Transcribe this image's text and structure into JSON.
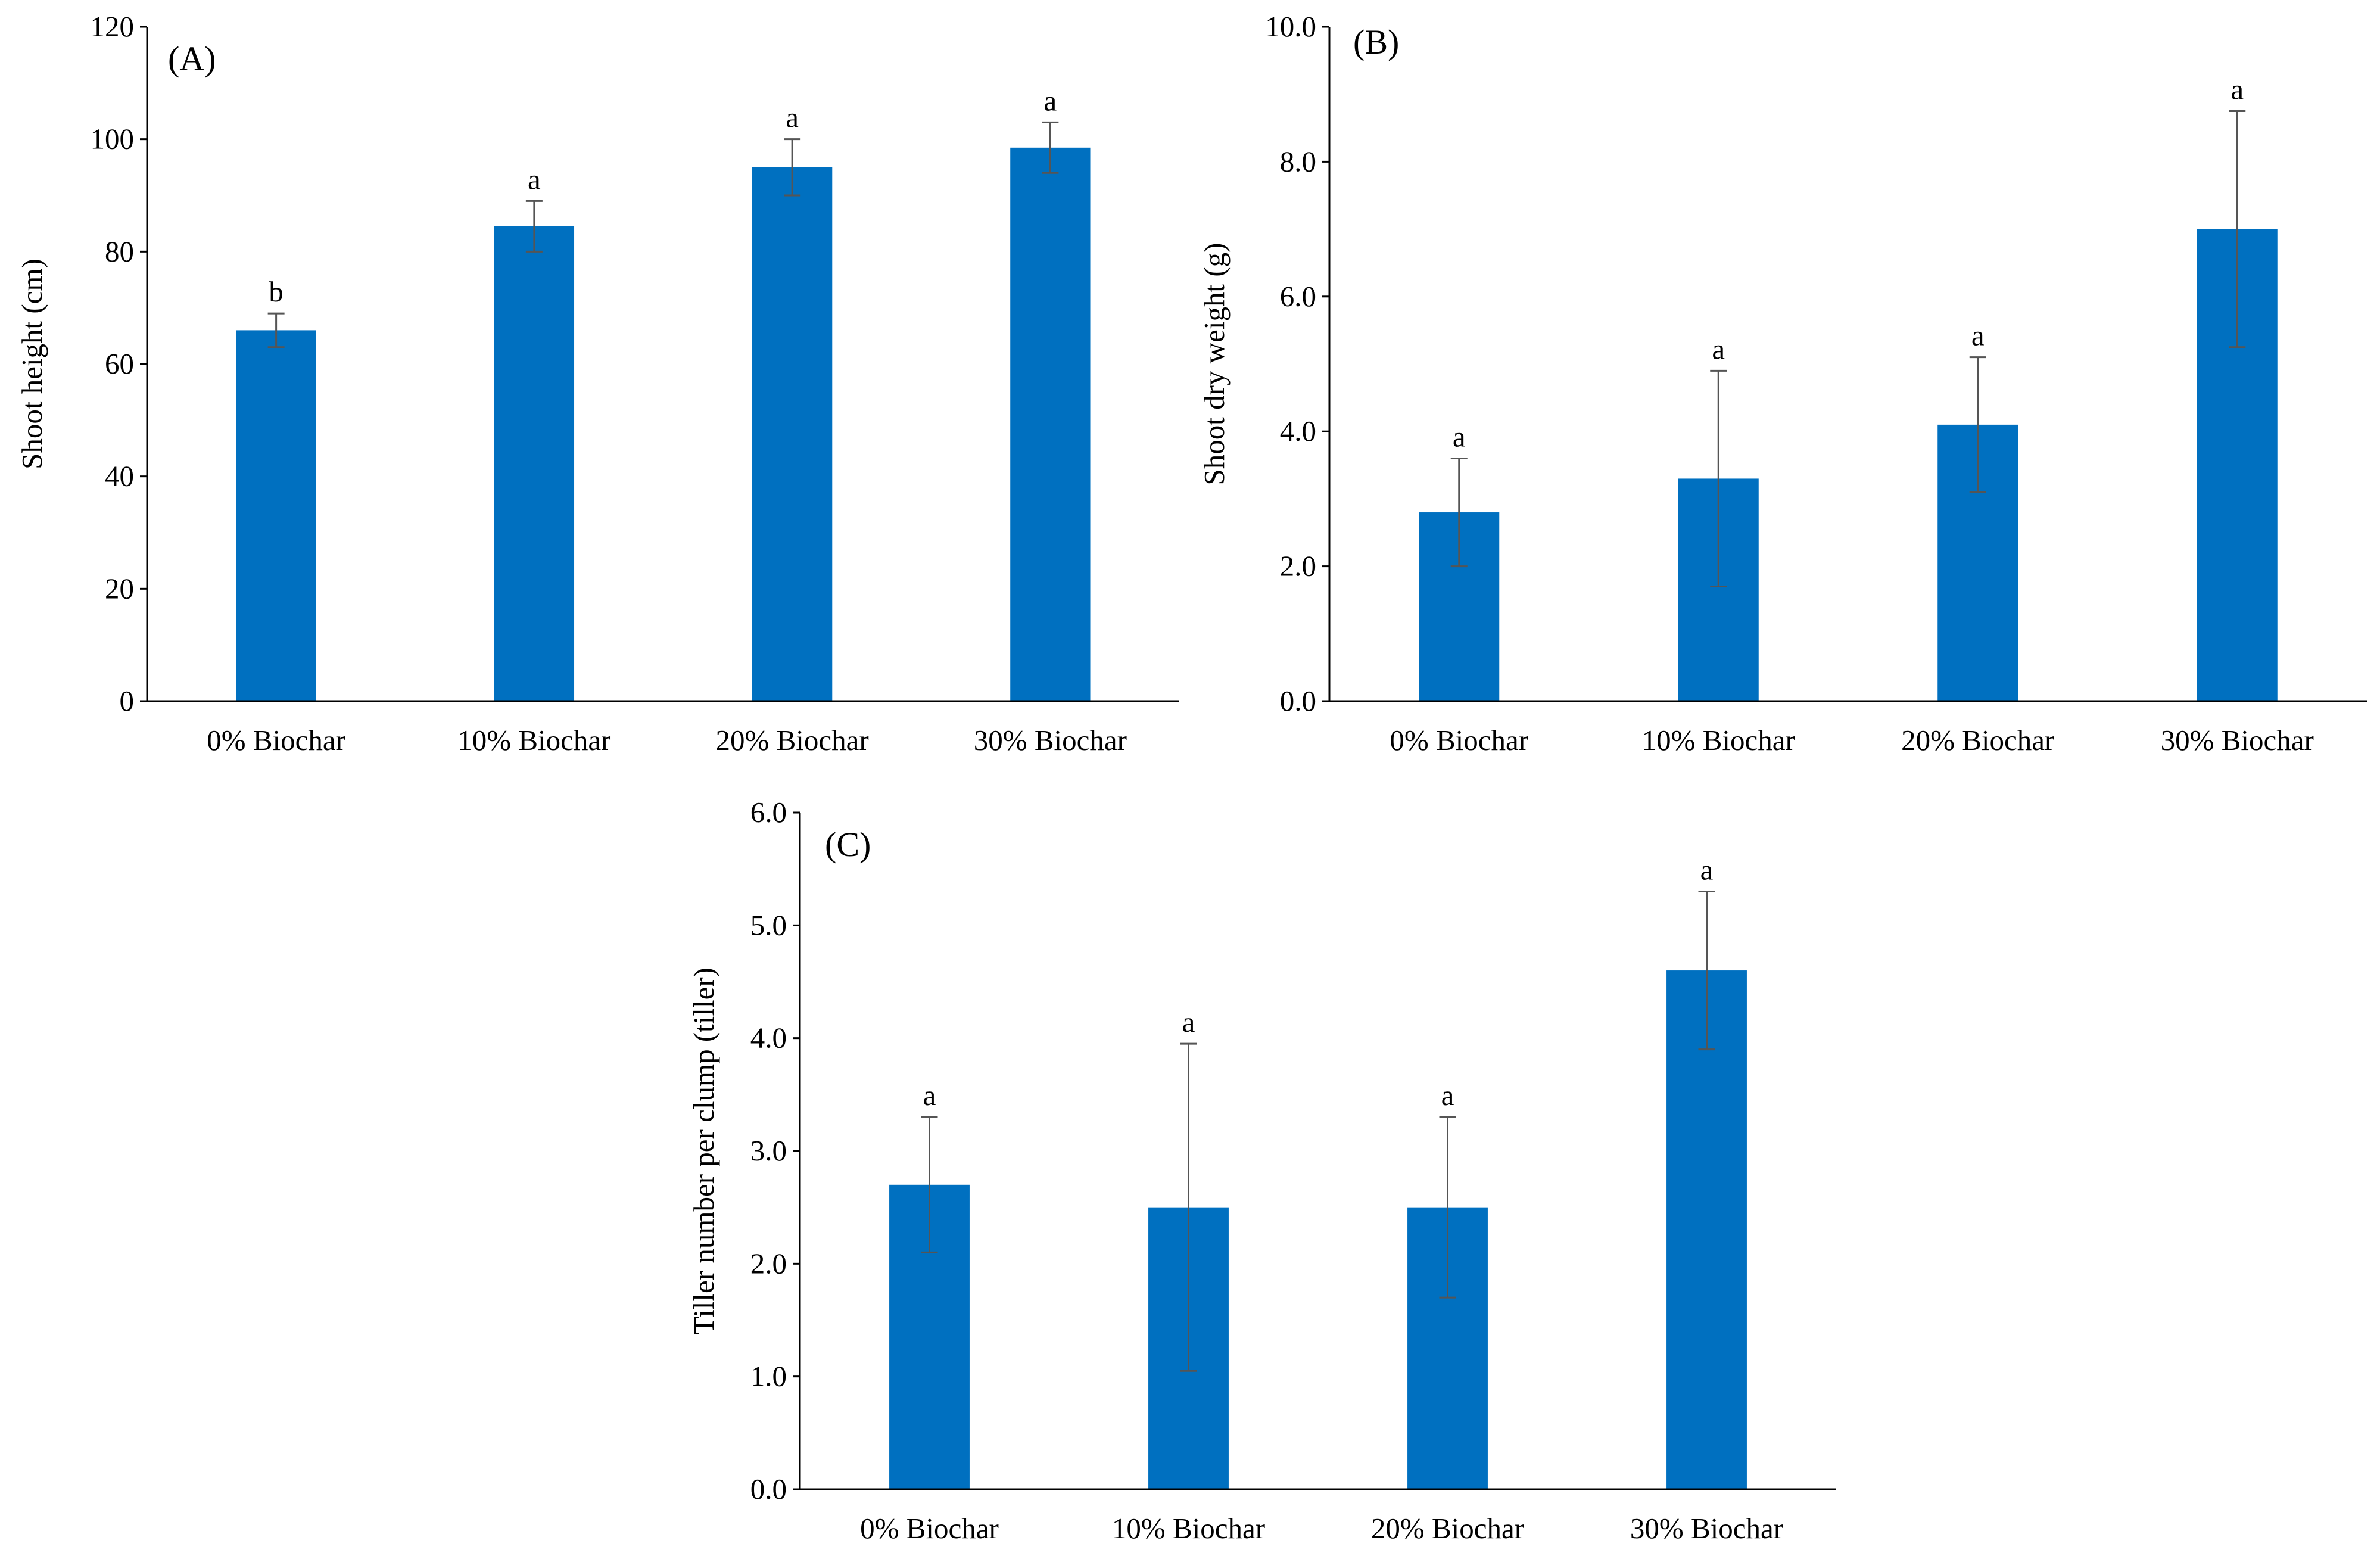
{
  "chart_data": [
    {
      "panel_label": "(A)",
      "type": "bar",
      "categories": [
        "0% Biochar",
        "10% Biochar",
        "20% Biochar",
        "30% Biochar"
      ],
      "values": [
        66,
        84.5,
        95,
        98.5
      ],
      "errors": [
        3,
        4.5,
        5,
        4.5
      ],
      "significance": [
        "b",
        "a",
        "a",
        "a"
      ],
      "ylabel": "Shoot height (cm)",
      "ylim": [
        0,
        120
      ],
      "ytick_labels": [
        "0",
        "20",
        "40",
        "60",
        "80",
        "100",
        "120"
      ],
      "bar_color": "#0070C0"
    },
    {
      "panel_label": "(B)",
      "type": "bar",
      "categories": [
        "0% Biochar",
        "10% Biochar",
        "20% Biochar",
        "30% Biochar"
      ],
      "values": [
        2.8,
        3.3,
        4.1,
        7.0
      ],
      "errors": [
        0.8,
        1.6,
        1.0,
        1.75
      ],
      "significance": [
        "a",
        "a",
        "a",
        "a"
      ],
      "ylabel": "Shoot dry weight (g)",
      "ylim": [
        0,
        10
      ],
      "ytick_labels": [
        "0.0",
        "2.0",
        "4.0",
        "6.0",
        "8.0",
        "10.0"
      ],
      "bar_color": "#0070C0"
    },
    {
      "panel_label": "(C)",
      "type": "bar",
      "categories": [
        "0% Biochar",
        "10% Biochar",
        "20% Biochar",
        "30% Biochar"
      ],
      "values": [
        2.7,
        2.5,
        2.5,
        4.6
      ],
      "errors": [
        0.6,
        1.45,
        0.8,
        0.7
      ],
      "significance": [
        "a",
        "a",
        "a",
        "a"
      ],
      "ylabel": "Tiller  number per clump (tiller)",
      "ylim": [
        0,
        6
      ],
      "ytick_labels": [
        "0.0",
        "1.0",
        "2.0",
        "3.0",
        "4.0",
        "5.0",
        "6.0"
      ],
      "bar_color": "#0070C0"
    }
  ]
}
